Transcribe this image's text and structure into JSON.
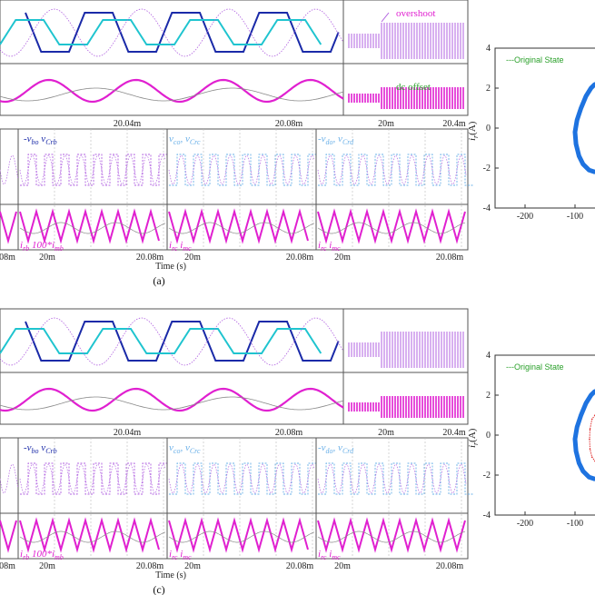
{
  "colors": {
    "navy": "#1a2aa8",
    "cyan": "#1fc4cf",
    "magenta": "#e020d0",
    "violet": "#b060e0",
    "gray": "#8a8a8a",
    "blue": "#1e73e0",
    "red": "#e03030",
    "green": "#2aa02a",
    "lightblue": "#6ab0e8"
  },
  "panels": [
    {
      "caption": "(a)",
      "overshoot": "overshoot",
      "dc_offset": "dc offset",
      "wave_tick": "20.04m",
      "wave_tick2": "20.08m",
      "burst_tick1": "20m",
      "burst_tick2": "20.4m",
      "sub_labels": [
        {
          "a": "-v",
          "as": "bo",
          "b": " v",
          "bs": "Crb"
        },
        {
          "a": "v",
          "as": "co",
          "b": ", v",
          "bs": "Crc"
        },
        {
          "a": "-v",
          "as": "do",
          "b": ", v",
          "bs": "Crd"
        }
      ],
      "cur_labels": [
        {
          "a": "i",
          "as": "rb",
          "b": " 100*i",
          "bs": "mb"
        },
        {
          "a": "i",
          "as": "rc",
          "b": " i",
          "bs": "mc"
        },
        {
          "a": "i",
          "as": "rc",
          "b": " i",
          "bs": "mc"
        }
      ],
      "bottom_ticks": [
        "08m",
        "20m",
        "20.08m",
        "20m",
        "20.08m",
        "20m",
        "20.08m"
      ],
      "xlabel": "Time (s)"
    },
    {
      "caption": "(c)",
      "wave_tick": "20.04m",
      "wave_tick2": "20.08m",
      "burst_tick1": "20m",
      "burst_tick2": "20.4m",
      "sub_labels": [
        {
          "a": "-v",
          "as": "bo",
          "b": " v",
          "bs": "Crb"
        },
        {
          "a": "v",
          "as": "co",
          "b": ", v",
          "bs": "Crc"
        },
        {
          "a": "-v",
          "as": "do",
          "b": ", v",
          "bs": "Crd"
        }
      ],
      "cur_labels": [
        {
          "a": "i",
          "as": "rb",
          "b": " 100*i",
          "bs": "mb"
        },
        {
          "a": "i",
          "as": "rc",
          "b": " i",
          "bs": "mc"
        },
        {
          "a": "i",
          "as": "rc",
          "b": " i",
          "bs": "mc"
        }
      ],
      "bottom_ticks": [
        "08m",
        "20m",
        "20.08m",
        "20m",
        "20.08m",
        "20m",
        "20.08m"
      ],
      "xlabel": "Time (s)"
    }
  ],
  "chart_data": [
    {
      "type": "scatter",
      "legend": "---Original State",
      "ylabel": "i_r (A)",
      "xticks": [
        -200,
        -100
      ],
      "yticks": [
        4,
        2,
        0,
        -2,
        -4
      ],
      "xlim": [
        -260,
        -60
      ],
      "ylim": [
        -4,
        4
      ],
      "series": [
        {
          "name": "---Original State",
          "color": "#1e73e0",
          "x": [
            -60,
            -68,
            -78,
            -88,
            -96,
            -100,
            -98,
            -92,
            -84,
            -72,
            -60
          ],
          "y": [
            2.2,
            2.0,
            1.6,
            1.0,
            0.4,
            -0.2,
            -0.8,
            -1.4,
            -1.8,
            -2.1,
            -2.2
          ]
        }
      ]
    },
    {
      "type": "scatter",
      "legend": "---Original State",
      "ylabel": "i_r (A)",
      "xticks": [
        -200,
        -100
      ],
      "yticks": [
        4,
        2,
        0,
        -2,
        -4
      ],
      "xlim": [
        -260,
        -60
      ],
      "ylim": [
        -4,
        4
      ],
      "series": [
        {
          "name": "---Original State",
          "color": "#1e73e0",
          "x": [
            -60,
            -68,
            -78,
            -88,
            -96,
            -100,
            -98,
            -92,
            -84,
            -72,
            -60
          ],
          "y": [
            2.2,
            2.0,
            1.6,
            1.0,
            0.4,
            -0.2,
            -0.8,
            -1.4,
            -1.8,
            -2.1,
            -2.2
          ]
        },
        {
          "color": "#e03030",
          "x": [
            -60,
            -66,
            -70,
            -71,
            -70,
            -66,
            -60
          ],
          "y": [
            1.0,
            0.8,
            0.3,
            -0.2,
            -0.7,
            -1.1,
            -1.3
          ]
        }
      ]
    }
  ]
}
